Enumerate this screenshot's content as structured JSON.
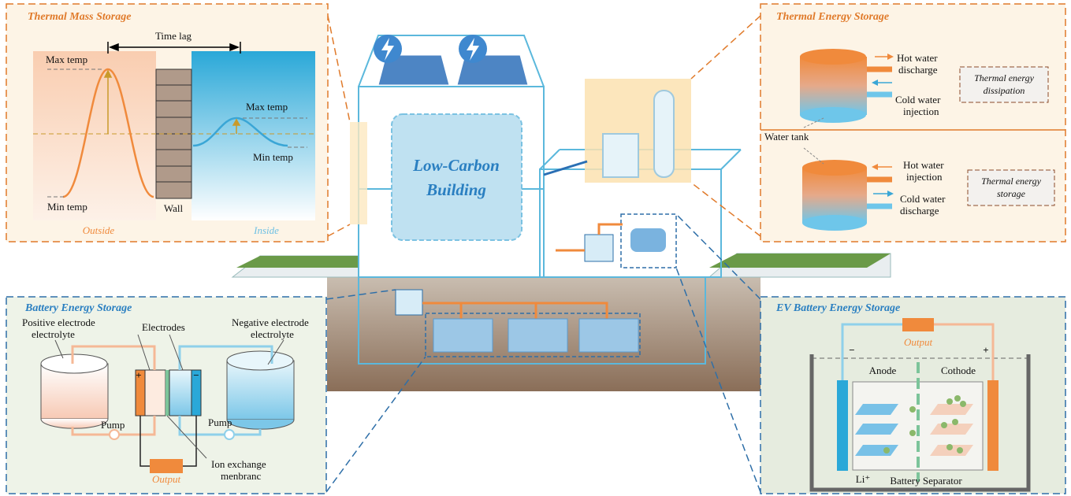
{
  "center": {
    "title": [
      "Low-Carbon",
      "Building"
    ]
  },
  "thermal_mass": {
    "title": "Thermal Mass Storage",
    "time_lag": "Time lag",
    "outside_max": "Max temp",
    "outside_min": "Min temp",
    "inside_max": "Max temp",
    "inside_min": "Min temp",
    "wall": "Wall",
    "outside": "Outside",
    "inside": "Inside"
  },
  "thermal_energy": {
    "title": "Thermal Energy Storage",
    "hot_water_discharge": [
      "Hot water",
      "discharge"
    ],
    "cold_water_injection": [
      "Cold water",
      "injection"
    ],
    "dissipation": [
      "Thermal energy",
      "dissipation"
    ],
    "water_tank": "Water tank",
    "hot_water_injection": [
      "Hot water",
      "injection"
    ],
    "cold_water_discharge": [
      "Cold water",
      "discharge"
    ],
    "storage": [
      "Thermal energy",
      "storage"
    ]
  },
  "battery": {
    "title": "Battery Energy Storage",
    "positive": [
      "Positive electrode",
      "electrolyte"
    ],
    "electrodes": "Electrodes",
    "negative": [
      "Negative electrode",
      "electrolyte"
    ],
    "plus": "+",
    "minus": "−",
    "pump_left": "Pump",
    "pump_right": "Pump",
    "output": "Output",
    "membrane": [
      "Ion exchange",
      "menbranc"
    ]
  },
  "ev_battery": {
    "title": "EV Battery Energy Storage",
    "output": "Output",
    "minus": "−",
    "plus": "+",
    "anode": "Anode",
    "cathode": "Cothode",
    "li": "Li⁺",
    "separator": "Battery Separator"
  }
}
